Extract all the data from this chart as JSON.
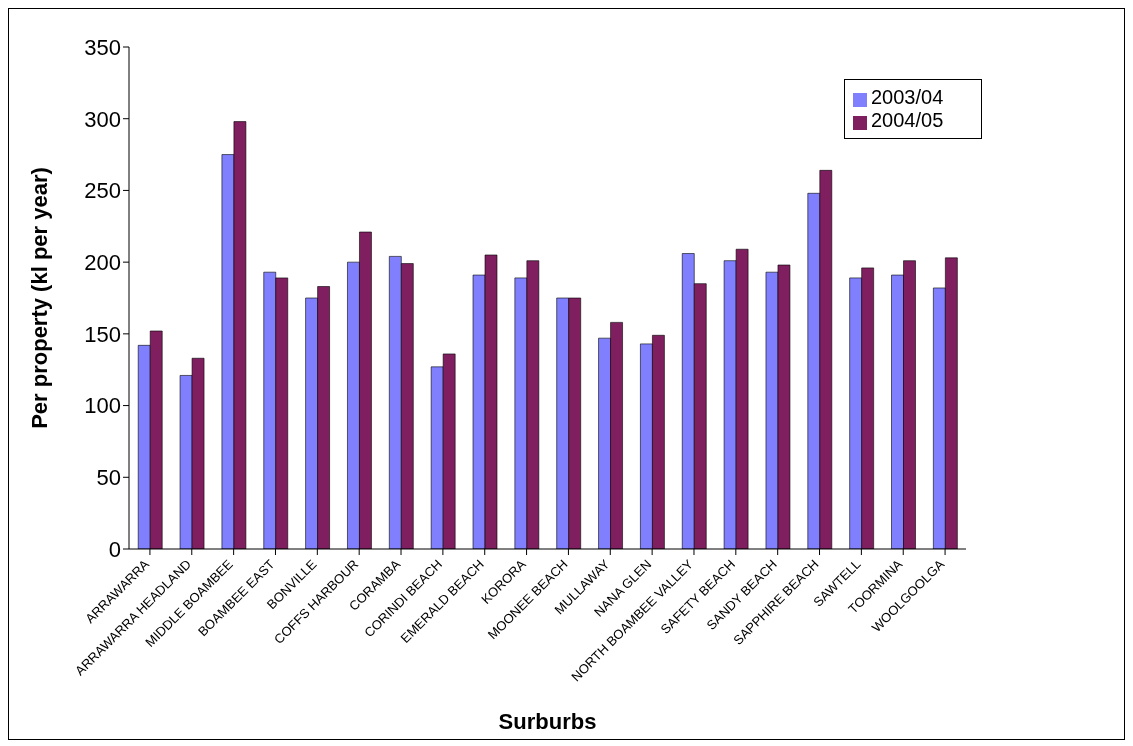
{
  "chart_data": {
    "type": "bar",
    "xlabel": "Surburbs",
    "ylabel": "Per property (kl per year)",
    "categories": [
      "ARRAWARRA",
      "ARRAWARRA HEADLAND",
      "MIDDLE BOAMBEE",
      "BOAMBEE EAST",
      "BONVILLE",
      "COFFS HARBOUR",
      "CORAMBA",
      "CORINDI BEACH",
      "EMERALD BEACH",
      "KORORA",
      "MOONEE BEACH",
      "MULLAWAY",
      "NANA GLEN",
      "NORTH BOAMBEE  VALLEY",
      "SAFETY BEACH",
      "SANDY BEACH",
      "SAPPHIRE BEACH",
      "SAWTELL",
      "TOORMINA",
      "WOOLGOOLGA"
    ],
    "series": [
      {
        "name": "2003/04",
        "color": "#8080ff",
        "values": [
          142,
          121,
          275,
          193,
          175,
          200,
          204,
          127,
          191,
          189,
          175,
          147,
          143,
          206,
          201,
          193,
          248,
          189,
          191,
          182
        ]
      },
      {
        "name": "2004/05",
        "color": "#7f1f5f",
        "values": [
          152,
          133,
          298,
          189,
          183,
          221,
          199,
          136,
          205,
          201,
          175,
          158,
          149,
          185,
          209,
          198,
          264,
          196,
          201,
          203
        ]
      }
    ],
    "ylim": [
      0,
      350
    ],
    "yticks": [
      0,
      50,
      100,
      150,
      200,
      250,
      300,
      350
    ],
    "grid": false,
    "legend": "top right"
  }
}
